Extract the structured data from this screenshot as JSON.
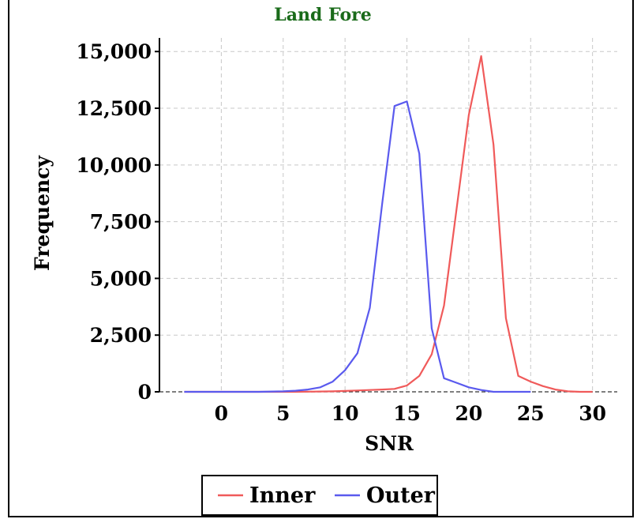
{
  "chart_data": {
    "type": "line",
    "title": "Land Fore",
    "xlabel": "SNR",
    "ylabel": "Frequency",
    "xlim": [
      -5,
      32
    ],
    "ylim": [
      0,
      15600
    ],
    "xticks": [
      0,
      5,
      10,
      15,
      20,
      25,
      30
    ],
    "yticks": [
      0,
      2500,
      5000,
      7500,
      10000,
      12500,
      15000
    ],
    "ytick_labels": [
      "0",
      "2,500",
      "5,000",
      "7,500",
      "10,000",
      "12,500",
      "15,000"
    ],
    "grid": true,
    "legend_position": "bottom",
    "series": [
      {
        "name": "Inner",
        "color": "#f05a5a",
        "x": [
          -3,
          0,
          3,
          6,
          9,
          10,
          11,
          12,
          13,
          14,
          15,
          16,
          17,
          18,
          19,
          20,
          21,
          22,
          23,
          24,
          25,
          26,
          27,
          28,
          29,
          30
        ],
        "y": [
          0,
          0,
          0,
          0,
          20,
          40,
          60,
          80,
          100,
          130,
          280,
          700,
          1650,
          3800,
          8000,
          12200,
          14800,
          10900,
          3250,
          700,
          450,
          250,
          100,
          20,
          0,
          0
        ]
      },
      {
        "name": "Outer",
        "color": "#5a5aee",
        "x": [
          -3,
          0,
          3,
          5,
          6,
          7,
          8,
          9,
          10,
          11,
          12,
          13,
          14,
          15,
          16,
          17,
          18,
          19,
          20,
          21,
          22,
          23,
          24,
          25
        ],
        "y": [
          0,
          0,
          0,
          20,
          50,
          100,
          200,
          450,
          950,
          1700,
          3700,
          8300,
          12600,
          12800,
          10500,
          2800,
          600,
          400,
          200,
          80,
          0,
          0,
          0,
          0
        ]
      }
    ]
  }
}
